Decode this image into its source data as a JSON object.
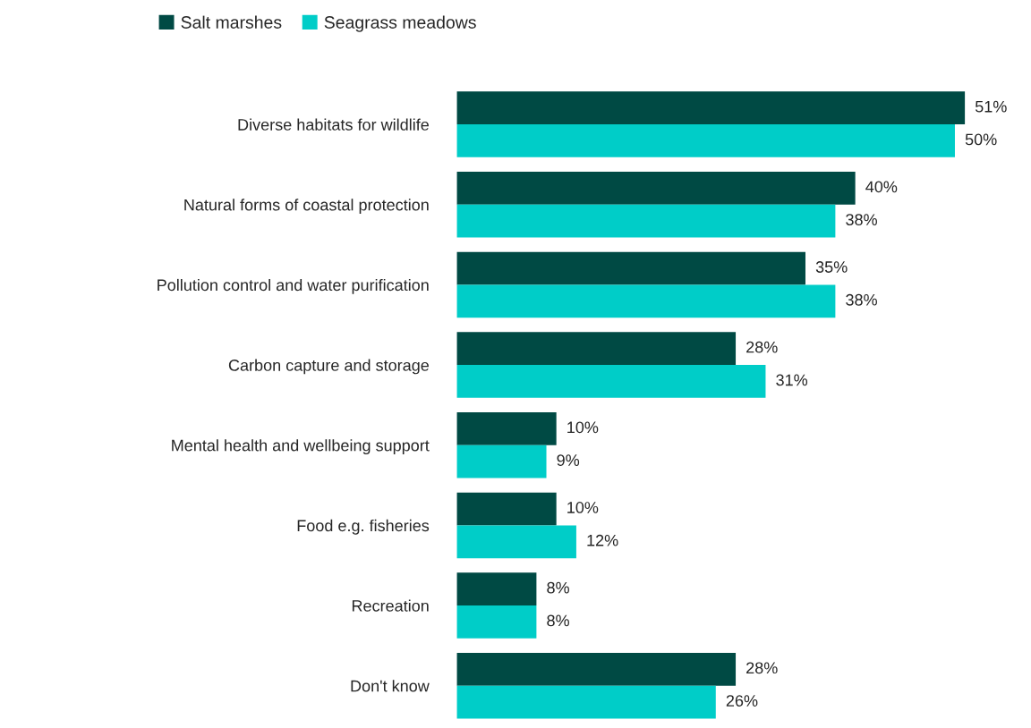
{
  "chart_data": {
    "type": "bar",
    "orientation": "horizontal",
    "legend": "top",
    "categories": [
      "Diverse habitats for wildlife",
      "Natural forms of coastal protection",
      "Pollution control and water purification",
      "Carbon capture and storage",
      "Mental health and wellbeing support",
      "Food e.g. fisheries",
      "Recreation",
      "Don't know"
    ],
    "series": [
      {
        "name": "Salt marshes",
        "color": "#004a44",
        "values": [
          51,
          40,
          35,
          28,
          10,
          10,
          8,
          28
        ],
        "value_labels": [
          "51%",
          "40%",
          "35%",
          "28%",
          "10%",
          "10%",
          "8%",
          "28%"
        ]
      },
      {
        "name": "Seagrass meadows",
        "color": "#00cdc8",
        "values": [
          50,
          38,
          38,
          31,
          9,
          12,
          8,
          26
        ],
        "value_labels": [
          "50%",
          "38%",
          "38%",
          "31%",
          "9%",
          "12%",
          "8%",
          "26%"
        ]
      }
    ]
  }
}
